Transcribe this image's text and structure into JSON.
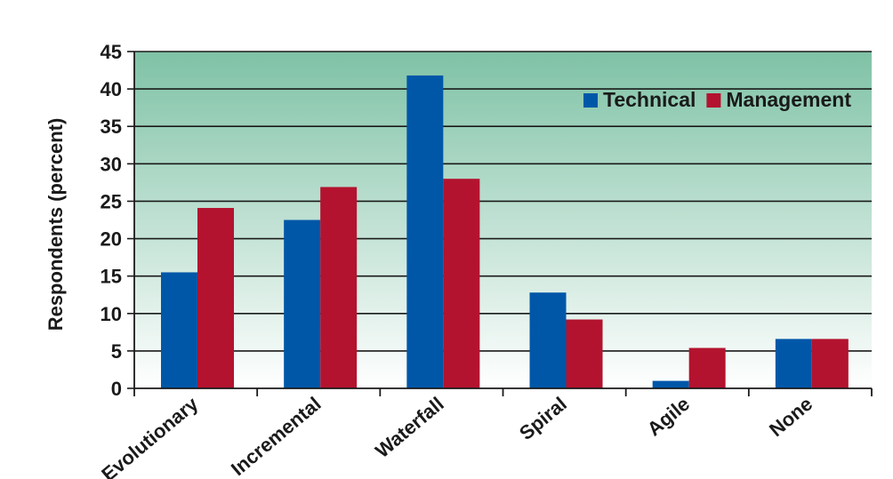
{
  "chart_data": {
    "type": "bar",
    "title": "",
    "xlabel": "",
    "ylabel": "Respondents (percent)",
    "categories": [
      "Evolutionary",
      "Incremental",
      "Waterfall",
      "Spiral",
      "Agile",
      "None"
    ],
    "series": [
      {
        "name": "Technical",
        "color": "#0057a8",
        "values": [
          15.5,
          22.5,
          41.8,
          12.8,
          1.0,
          6.6
        ]
      },
      {
        "name": "Management",
        "color": "#b3132e",
        "values": [
          24.1,
          26.9,
          28.0,
          9.2,
          5.4,
          6.6
        ]
      }
    ],
    "yticks": [
      "0",
      "5",
      "10",
      "15",
      "20",
      "25",
      "30",
      "35",
      "40",
      "45"
    ],
    "ylim": [
      0,
      45
    ],
    "grid": true,
    "legend_position": "top-right",
    "background_gradient": [
      "#7fc2a6",
      "#ffffff"
    ]
  }
}
